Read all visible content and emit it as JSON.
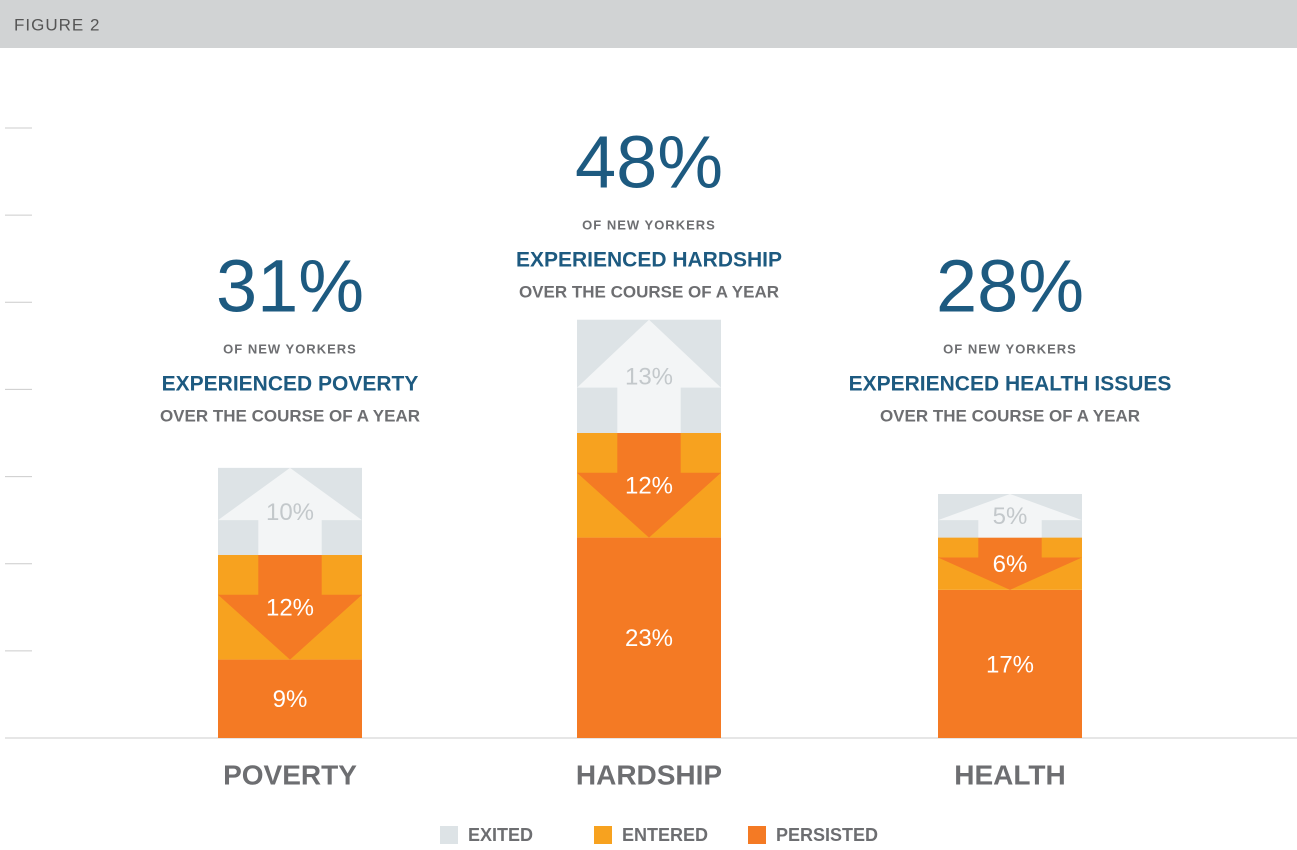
{
  "chart_data": {
    "type": "stacked-bar",
    "header": "FIGURE 2",
    "categories": [
      "POVERTY",
      "HARDSHIP",
      "HEALTH"
    ],
    "series": [
      {
        "name": "EXITED",
        "color": "#dde3e6",
        "label_color": "#c3c8cb",
        "values": [
          10,
          13,
          5
        ],
        "value_labels": [
          "10%",
          "13%",
          "5%"
        ]
      },
      {
        "name": "ENTERED",
        "color": "#f7a21f",
        "label_color": "#ffffff",
        "values": [
          12,
          12,
          6
        ],
        "value_labels": [
          "12%",
          "12%",
          "6%"
        ]
      },
      {
        "name": "PERSISTED",
        "color": "#f47a24",
        "label_color": "#ffffff",
        "values": [
          9,
          23,
          17
        ],
        "value_labels": [
          "9%",
          "23%",
          "17%"
        ]
      }
    ],
    "annotations": [
      {
        "total": "31%",
        "line1": "OF NEW YORKERS",
        "line2": "EXPERIENCED POVERTY",
        "line3": "OVER THE COURSE OF A YEAR"
      },
      {
        "total": "48%",
        "line1": "OF NEW YORKERS",
        "line2": "EXPERIENCED HARDSHIP",
        "line3": "OVER THE COURSE OF A YEAR"
      },
      {
        "total": "28%",
        "line1": "OF NEW YORKERS",
        "line2": "EXPERIENCED HEALTH ISSUES",
        "line3": "OVER THE COURSE OF A YEAR"
      }
    ],
    "ylim": [
      0,
      70
    ],
    "yticks": [
      0,
      10,
      20,
      30,
      40,
      50,
      60,
      70
    ]
  }
}
